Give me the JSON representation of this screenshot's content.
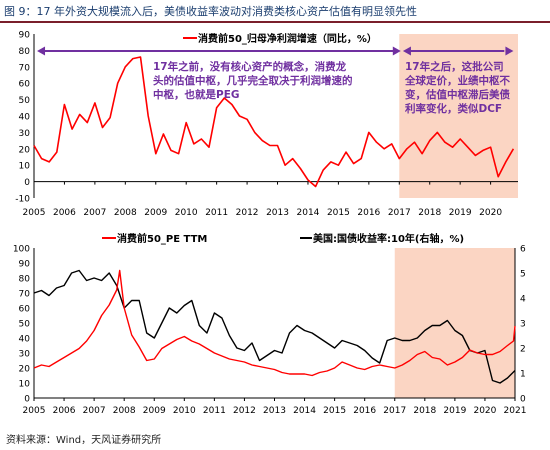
{
  "figure_title": "图 9：17 年外资大规模流入后，美债收益率波动对消费类核心资产估值有明显领先性",
  "source_note": "资料来源：Wind，天风证券研究所",
  "colors": {
    "red": "#ff0000",
    "black": "#000000",
    "purple": "#7030a0",
    "shade": "#fbd5c3",
    "title_blue": "#1a3d6e",
    "rule": "#7a1f2b"
  },
  "chart_data": [
    {
      "type": "line",
      "legend": "消费前50_归母净利润增速（同比，%）",
      "legend_position": "top-center",
      "x_ticks": [
        "2005",
        "2006",
        "2007",
        "2008",
        "2009",
        "2010",
        "2011",
        "2012",
        "2013",
        "2014",
        "2015",
        "2016",
        "2017",
        "2018",
        "2019",
        "2020"
      ],
      "xlim": [
        2005,
        2020.9
      ],
      "ylim": [
        -10,
        90
      ],
      "y_ticks": [
        -10,
        0,
        10,
        20,
        30,
        40,
        50,
        60,
        70,
        80,
        90
      ],
      "shaded_range": [
        2017,
        2020.9
      ],
      "annotations": [
        "17年之前，没有核心资产的概念，消费龙头的估值中枢，几乎完全取决于利润增速的中枢，也就是PEG",
        "17年之后，这批公司全球定价，业绩中枢不变，估值中枢滞后美债利率变化，类似DCF"
      ],
      "series": [
        {
          "name": "消费前50_归母净利润增速（同比，%）",
          "color": "#ff0000",
          "x": [
            2005.0,
            2005.25,
            2005.5,
            2005.75,
            2006.0,
            2006.25,
            2006.5,
            2006.75,
            2007.0,
            2007.25,
            2007.5,
            2007.75,
            2008.0,
            2008.25,
            2008.5,
            2008.75,
            2009.0,
            2009.25,
            2009.5,
            2009.75,
            2010.0,
            2010.25,
            2010.5,
            2010.75,
            2011.0,
            2011.25,
            2011.5,
            2011.75,
            2012.0,
            2012.25,
            2012.5,
            2012.75,
            2013.0,
            2013.25,
            2013.5,
            2013.75,
            2014.0,
            2014.25,
            2014.5,
            2014.75,
            2015.0,
            2015.25,
            2015.5,
            2015.75,
            2016.0,
            2016.25,
            2016.5,
            2016.75,
            2017.0,
            2017.25,
            2017.5,
            2017.75,
            2018.0,
            2018.25,
            2018.5,
            2018.75,
            2019.0,
            2019.25,
            2019.5,
            2019.75,
            2020.0,
            2020.25,
            2020.5,
            2020.75
          ],
          "y": [
            22,
            14,
            12,
            18,
            47,
            32,
            41,
            36,
            48,
            33,
            39,
            60,
            70,
            75,
            76,
            40,
            17,
            29,
            19,
            17,
            36,
            23,
            26,
            21,
            45,
            51,
            47,
            40,
            38,
            30,
            25,
            22,
            22,
            10,
            14,
            8,
            1,
            -3,
            7,
            12,
            10,
            18,
            11,
            14,
            30,
            24,
            20,
            23,
            14,
            20,
            24,
            17,
            25,
            30,
            24,
            21,
            26,
            21,
            16,
            19,
            21,
            3,
            12,
            20
          ]
        }
      ]
    },
    {
      "type": "line",
      "x_ticks": [
        "2005",
        "2006",
        "2007",
        "2008",
        "2009",
        "2010",
        "2011",
        "2012",
        "2013",
        "2014",
        "2015",
        "2016",
        "2017",
        "2018",
        "2019",
        "2020",
        "2021"
      ],
      "xlim": [
        2005,
        2021
      ],
      "ylim": [
        0,
        100
      ],
      "y_ticks": [
        0,
        10,
        20,
        30,
        40,
        50,
        60,
        70,
        80,
        90,
        100
      ],
      "y2lim": [
        0,
        6
      ],
      "y2_ticks": [
        0,
        1,
        2,
        3,
        4,
        5,
        6
      ],
      "shaded_range": [
        2017,
        2021
      ],
      "legend_position": "top",
      "series": [
        {
          "name": "消费前50_PE TTM",
          "axis": "left",
          "color": "#ff0000",
          "x": [
            2005.0,
            2005.25,
            2005.5,
            2005.75,
            2006.0,
            2006.25,
            2006.5,
            2006.75,
            2007.0,
            2007.25,
            2007.5,
            2007.75,
            2007.85,
            2008.0,
            2008.25,
            2008.5,
            2008.75,
            2009.0,
            2009.25,
            2009.5,
            2009.75,
            2010.0,
            2010.25,
            2010.5,
            2010.75,
            2011.0,
            2011.25,
            2011.5,
            2011.75,
            2012.0,
            2012.25,
            2012.5,
            2012.75,
            2013.0,
            2013.25,
            2013.5,
            2013.75,
            2014.0,
            2014.25,
            2014.5,
            2014.75,
            2015.0,
            2015.25,
            2015.5,
            2015.75,
            2016.0,
            2016.25,
            2016.5,
            2016.75,
            2017.0,
            2017.25,
            2017.5,
            2017.75,
            2018.0,
            2018.25,
            2018.5,
            2018.75,
            2019.0,
            2019.25,
            2019.5,
            2019.75,
            2020.0,
            2020.25,
            2020.5,
            2020.75,
            2020.95,
            2021.0
          ],
          "y": [
            20,
            22,
            21,
            24,
            27,
            30,
            33,
            38,
            45,
            55,
            62,
            72,
            85,
            60,
            42,
            34,
            25,
            26,
            33,
            36,
            39,
            41,
            38,
            36,
            33,
            30,
            28,
            26,
            25,
            24,
            22,
            21,
            20,
            19,
            17,
            16,
            16,
            16,
            15,
            17,
            18,
            20,
            24,
            22,
            20,
            19,
            21,
            22,
            21,
            20,
            22,
            25,
            29,
            31,
            27,
            26,
            22,
            24,
            27,
            32,
            30,
            29,
            29,
            31,
            35,
            38,
            48
          ]
        },
        {
          "name": "美国:国债收益率:10年(右轴，%)",
          "axis": "right",
          "color": "#000000",
          "x": [
            2005.0,
            2005.25,
            2005.5,
            2005.75,
            2006.0,
            2006.25,
            2006.5,
            2006.75,
            2007.0,
            2007.25,
            2007.5,
            2007.75,
            2008.0,
            2008.25,
            2008.5,
            2008.75,
            2009.0,
            2009.25,
            2009.5,
            2009.75,
            2010.0,
            2010.25,
            2010.5,
            2010.75,
            2011.0,
            2011.25,
            2011.5,
            2011.75,
            2012.0,
            2012.25,
            2012.5,
            2012.75,
            2013.0,
            2013.25,
            2013.5,
            2013.75,
            2014.0,
            2014.25,
            2014.5,
            2014.75,
            2015.0,
            2015.25,
            2015.5,
            2015.75,
            2016.0,
            2016.25,
            2016.5,
            2016.75,
            2017.0,
            2017.25,
            2017.5,
            2017.75,
            2018.0,
            2018.25,
            2018.5,
            2018.75,
            2019.0,
            2019.25,
            2019.5,
            2019.75,
            2020.0,
            2020.25,
            2020.5,
            2020.75,
            2021.0
          ],
          "y": [
            4.2,
            4.3,
            4.1,
            4.4,
            4.5,
            5.0,
            5.1,
            4.7,
            4.8,
            4.7,
            5.0,
            4.5,
            3.6,
            3.9,
            3.9,
            2.6,
            2.4,
            3.0,
            3.6,
            3.4,
            3.7,
            3.9,
            2.9,
            2.6,
            3.4,
            3.2,
            2.5,
            2.0,
            1.9,
            2.2,
            1.5,
            1.7,
            1.9,
            1.8,
            2.6,
            2.9,
            2.7,
            2.6,
            2.4,
            2.2,
            2.0,
            2.3,
            2.2,
            2.1,
            1.9,
            1.6,
            1.4,
            2.3,
            2.4,
            2.3,
            2.3,
            2.4,
            2.7,
            2.9,
            2.9,
            3.1,
            2.7,
            2.5,
            1.9,
            1.8,
            1.9,
            0.7,
            0.6,
            0.8,
            1.1
          ]
        }
      ]
    }
  ]
}
